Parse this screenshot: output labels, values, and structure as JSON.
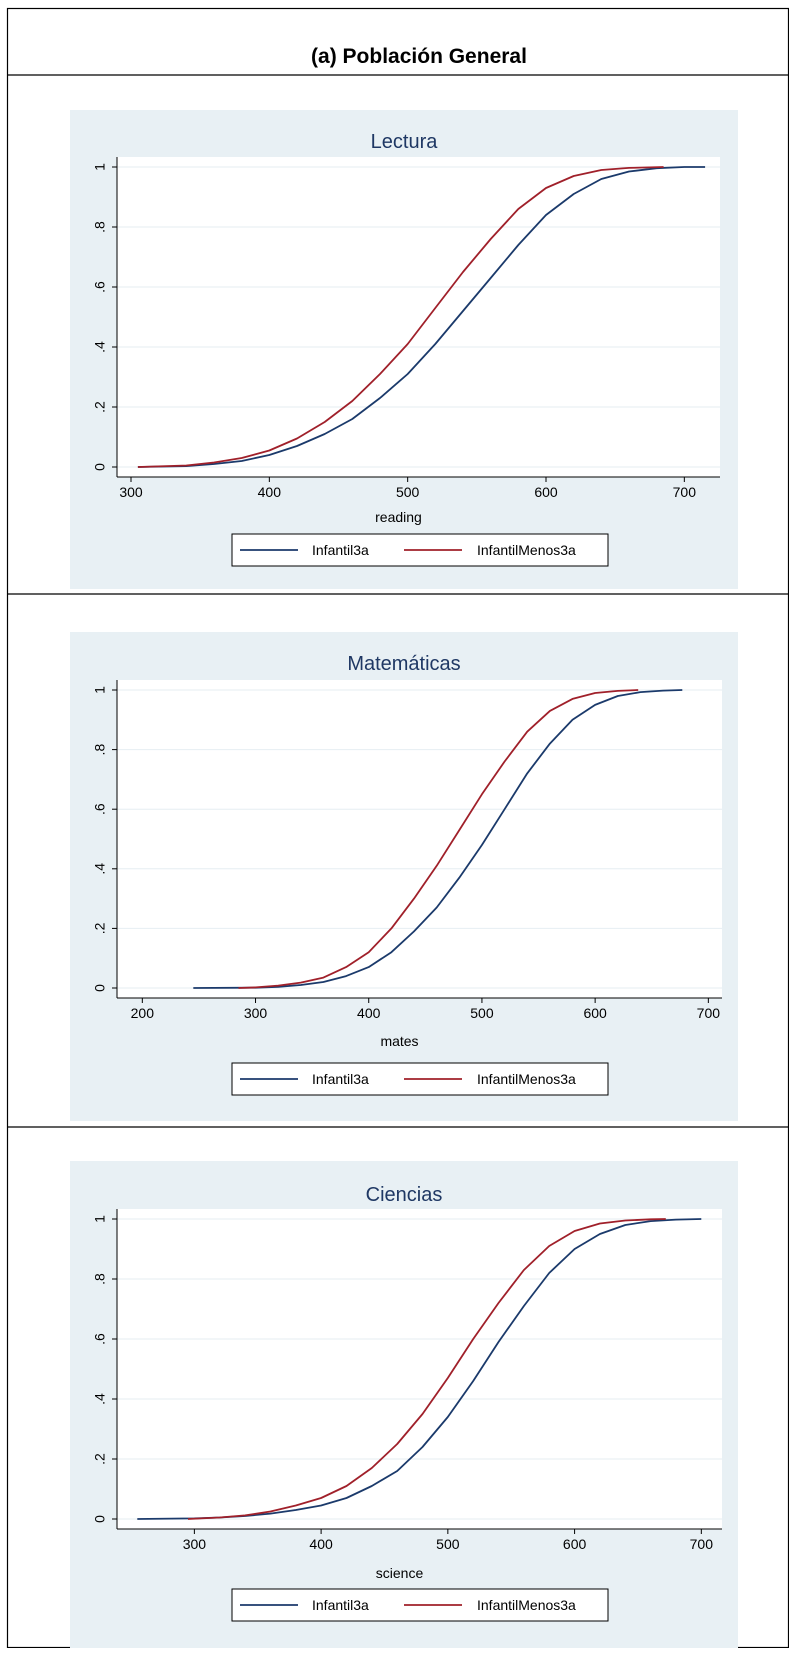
{
  "page": {
    "title": "(a) Población General"
  },
  "colors": {
    "panel_bg": "#e8f0f4",
    "plot_bg": "#ffffff",
    "grid": "#e6eef2",
    "title_text": "#1f3864",
    "series_1": "#1b3a6b",
    "series_2": "#a0202a",
    "border": "#000000"
  },
  "chart_data": [
    {
      "type": "line",
      "title": "Lectura",
      "xlabel": "reading",
      "ylabel": "",
      "xlim": [
        300,
        720
      ],
      "ylim": [
        0,
        1
      ],
      "xticks": [
        300,
        400,
        500,
        600,
        700
      ],
      "xtick_labels": [
        "300",
        "400",
        "500",
        "600",
        "700"
      ],
      "yticks": [
        0,
        0.2,
        0.4,
        0.6,
        0.8,
        1
      ],
      "ytick_labels": [
        "0",
        ".2",
        ".4",
        ".6",
        ".8",
        "1"
      ],
      "grid": true,
      "legend_position": "bottom",
      "series": [
        {
          "name": "Infantil3a",
          "x": [
            305,
            340,
            360,
            380,
            400,
            420,
            440,
            460,
            480,
            500,
            520,
            540,
            560,
            580,
            600,
            620,
            640,
            660,
            680,
            700,
            715
          ],
          "y": [
            0,
            0.003,
            0.01,
            0.02,
            0.04,
            0.07,
            0.11,
            0.16,
            0.23,
            0.31,
            0.41,
            0.52,
            0.63,
            0.74,
            0.84,
            0.91,
            0.96,
            0.985,
            0.996,
            1,
            1
          ]
        },
        {
          "name": "InfantilMenos3a",
          "x": [
            305,
            340,
            360,
            380,
            400,
            420,
            440,
            460,
            480,
            500,
            520,
            540,
            560,
            580,
            600,
            620,
            640,
            660,
            685
          ],
          "y": [
            0,
            0.005,
            0.015,
            0.03,
            0.055,
            0.095,
            0.15,
            0.22,
            0.31,
            0.41,
            0.53,
            0.65,
            0.76,
            0.86,
            0.93,
            0.97,
            0.99,
            0.997,
            1
          ]
        }
      ]
    },
    {
      "type": "line",
      "title": "Matemáticas",
      "xlabel": "mates",
      "ylabel": "",
      "xlim": [
        190,
        705
      ],
      "ylim": [
        0,
        1
      ],
      "xticks": [
        200,
        300,
        400,
        500,
        600,
        700
      ],
      "xtick_labels": [
        "200",
        "300",
        "400",
        "500",
        "600",
        "700"
      ],
      "yticks": [
        0,
        0.2,
        0.4,
        0.6,
        0.8,
        1
      ],
      "ytick_labels": [
        "0",
        ".2",
        ".4",
        ".6",
        ".8",
        "1"
      ],
      "grid": true,
      "legend_position": "bottom",
      "series": [
        {
          "name": "Infantil3a",
          "x": [
            245,
            300,
            320,
            340,
            360,
            380,
            400,
            420,
            440,
            460,
            480,
            500,
            520,
            540,
            560,
            580,
            600,
            620,
            640,
            660,
            677
          ],
          "y": [
            0,
            0.001,
            0.004,
            0.01,
            0.02,
            0.04,
            0.07,
            0.12,
            0.19,
            0.27,
            0.37,
            0.48,
            0.6,
            0.72,
            0.82,
            0.9,
            0.95,
            0.98,
            0.993,
            0.998,
            1
          ]
        },
        {
          "name": "InfantilMenos3a",
          "x": [
            285,
            300,
            320,
            340,
            360,
            380,
            400,
            420,
            440,
            460,
            480,
            500,
            520,
            540,
            560,
            580,
            600,
            620,
            638
          ],
          "y": [
            0,
            0.002,
            0.008,
            0.018,
            0.035,
            0.07,
            0.12,
            0.2,
            0.3,
            0.41,
            0.53,
            0.65,
            0.76,
            0.86,
            0.93,
            0.97,
            0.99,
            0.997,
            1
          ]
        }
      ]
    },
    {
      "type": "line",
      "title": "Ciencias",
      "xlabel": "science",
      "ylabel": "",
      "xlim": [
        250,
        710
      ],
      "ylim": [
        0,
        1
      ],
      "xticks": [
        300,
        400,
        500,
        600,
        700
      ],
      "xtick_labels": [
        "300",
        "400",
        "500",
        "600",
        "700"
      ],
      "yticks": [
        0,
        0.2,
        0.4,
        0.6,
        0.8,
        1
      ],
      "ytick_labels": [
        "0",
        ".2",
        ".4",
        ".6",
        ".8",
        "1"
      ],
      "grid": true,
      "legend_position": "bottom",
      "series": [
        {
          "name": "Infantil3a",
          "x": [
            255,
            300,
            320,
            340,
            360,
            380,
            400,
            420,
            440,
            460,
            480,
            500,
            520,
            540,
            560,
            580,
            600,
            620,
            640,
            660,
            680,
            700
          ],
          "y": [
            0,
            0.002,
            0.005,
            0.01,
            0.018,
            0.03,
            0.045,
            0.07,
            0.11,
            0.16,
            0.24,
            0.34,
            0.46,
            0.59,
            0.71,
            0.82,
            0.9,
            0.95,
            0.98,
            0.993,
            0.998,
            1
          ]
        },
        {
          "name": "InfantilMenos3a",
          "x": [
            295,
            320,
            340,
            360,
            380,
            400,
            420,
            440,
            460,
            480,
            500,
            520,
            540,
            560,
            580,
            600,
            620,
            640,
            660,
            672
          ],
          "y": [
            0,
            0.005,
            0.012,
            0.025,
            0.045,
            0.07,
            0.11,
            0.17,
            0.25,
            0.35,
            0.47,
            0.6,
            0.72,
            0.83,
            0.91,
            0.96,
            0.985,
            0.995,
            0.999,
            1
          ]
        }
      ]
    }
  ]
}
